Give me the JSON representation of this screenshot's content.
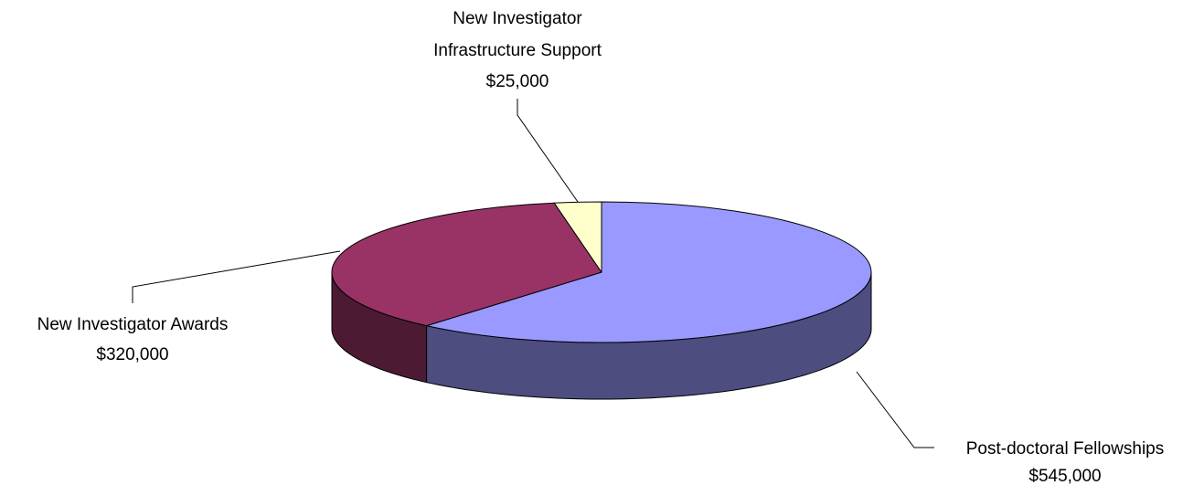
{
  "chart_data": {
    "type": "pie",
    "style": "3d",
    "title": "",
    "legend": "none",
    "slices": [
      {
        "name": "Post-doctoral Fellowships",
        "value": 545000,
        "value_label": "$545,000",
        "top_color": "#9999FF",
        "side_color": "#4D4D80"
      },
      {
        "name": "New Investigator Awards",
        "value": 320000,
        "value_label": "$320,000",
        "top_color": "#993366",
        "side_color": "#4D1A33"
      },
      {
        "name_lines": [
          "New Investigator",
          "Infrastructure Support"
        ],
        "name": "New Investigator Infrastructure Support",
        "value": 25000,
        "value_label": "$25,000",
        "top_color": "#FFFFCC",
        "side_color": "#80806A"
      }
    ]
  }
}
